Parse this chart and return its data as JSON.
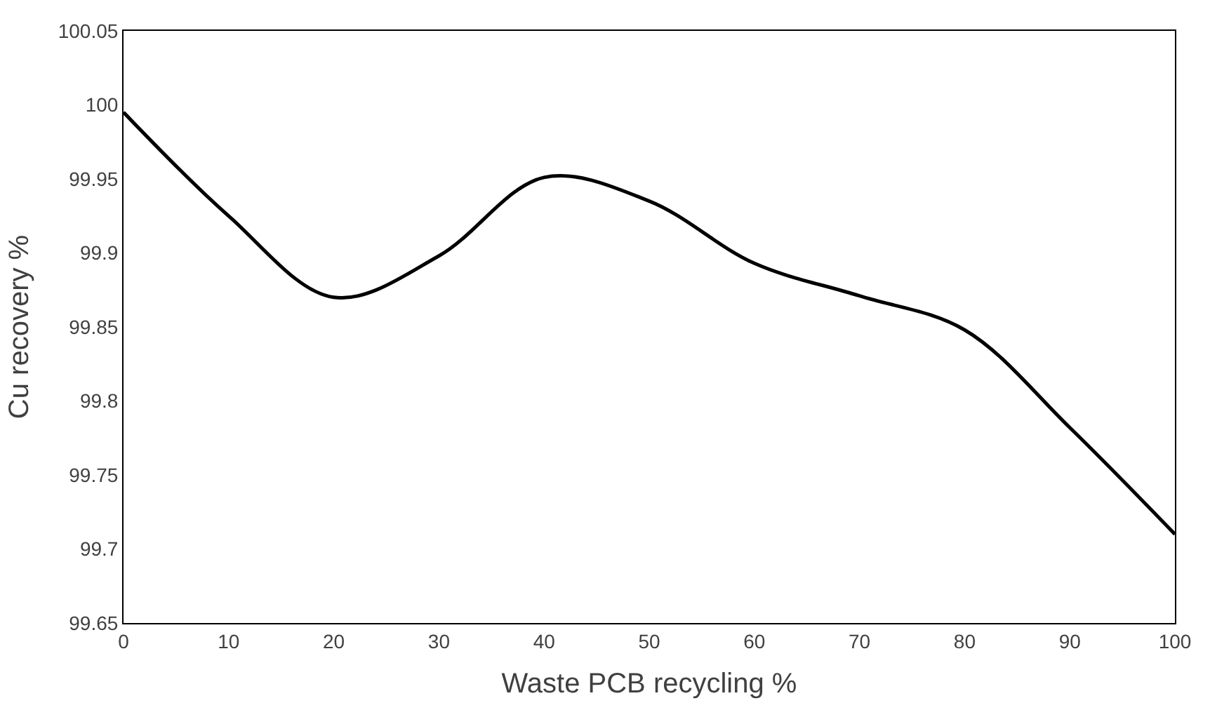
{
  "chart_data": {
    "type": "line",
    "xlabel": "Waste PCB recycling %",
    "ylabel": "Cu recovery %",
    "x": [
      0,
      10,
      20,
      30,
      40,
      50,
      60,
      70,
      80,
      90,
      100
    ],
    "series": [
      {
        "color": "#000000",
        "values": [
          99.995,
          99.925,
          99.87,
          99.898,
          99.951,
          99.935,
          99.893,
          99.871,
          99.848,
          99.782,
          99.71
        ]
      }
    ],
    "xlim": [
      0,
      100
    ],
    "xticks": [
      0,
      10,
      20,
      30,
      40,
      50,
      60,
      70,
      80,
      90,
      100
    ],
    "ylim": [
      99.65,
      100.05
    ],
    "yticks": [
      99.65,
      99.7,
      99.75,
      99.8,
      99.85,
      99.9,
      99.95,
      100,
      100.05
    ],
    "marker": "none",
    "line_style": "solid"
  }
}
